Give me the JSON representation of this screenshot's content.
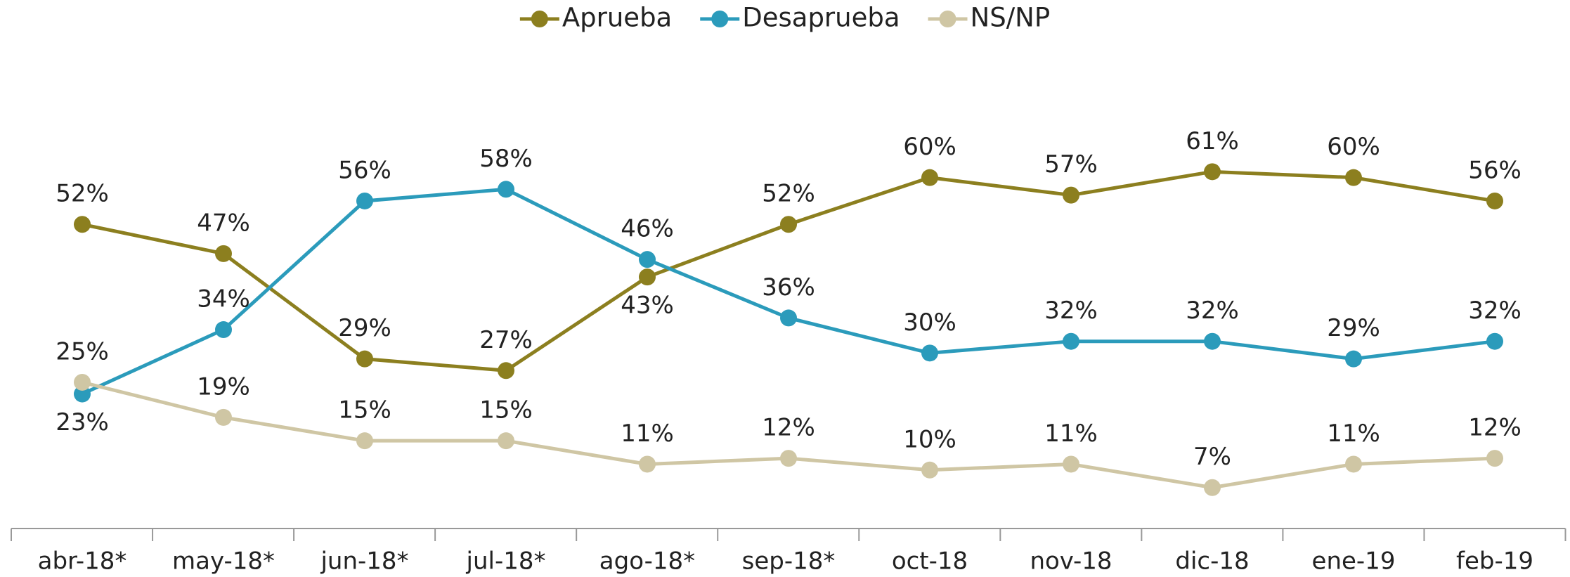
{
  "chart_data": {
    "type": "line",
    "categories": [
      "abr-18*",
      "may-18*",
      "jun-18*",
      "jul-18*",
      "ago-18*",
      "sep-18*",
      "oct-18",
      "nov-18",
      "dic-18",
      "ene-19",
      "feb-19"
    ],
    "series": [
      {
        "name": "Aprueba",
        "color": "#8c7f1f",
        "values": [
          52,
          47,
          29,
          27,
          43,
          52,
          60,
          57,
          61,
          60,
          56
        ],
        "value_labels": [
          "52%",
          "47%",
          "29%",
          "27%",
          "43%",
          "52%",
          "60%",
          "57%",
          "61%",
          "60%",
          "56%"
        ]
      },
      {
        "name": "Desaprueba",
        "color": "#2b9bbb",
        "values": [
          23,
          34,
          56,
          58,
          46,
          36,
          30,
          32,
          32,
          29,
          32
        ],
        "value_labels": [
          "23%",
          "34%",
          "56%",
          "58%",
          "46%",
          "36%",
          "30%",
          "32%",
          "32%",
          "29%",
          "32%"
        ]
      },
      {
        "name": "NS/NP",
        "color": "#cfc6a4",
        "values": [
          25,
          19,
          15,
          15,
          11,
          12,
          10,
          11,
          7,
          11,
          12
        ],
        "value_labels": [
          "25%",
          "19%",
          "15%",
          "15%",
          "11%",
          "12%",
          "10%",
          "11%",
          "7%",
          "11%",
          "12%"
        ]
      }
    ],
    "ylim": [
      0,
      90
    ],
    "legend": "top"
  }
}
